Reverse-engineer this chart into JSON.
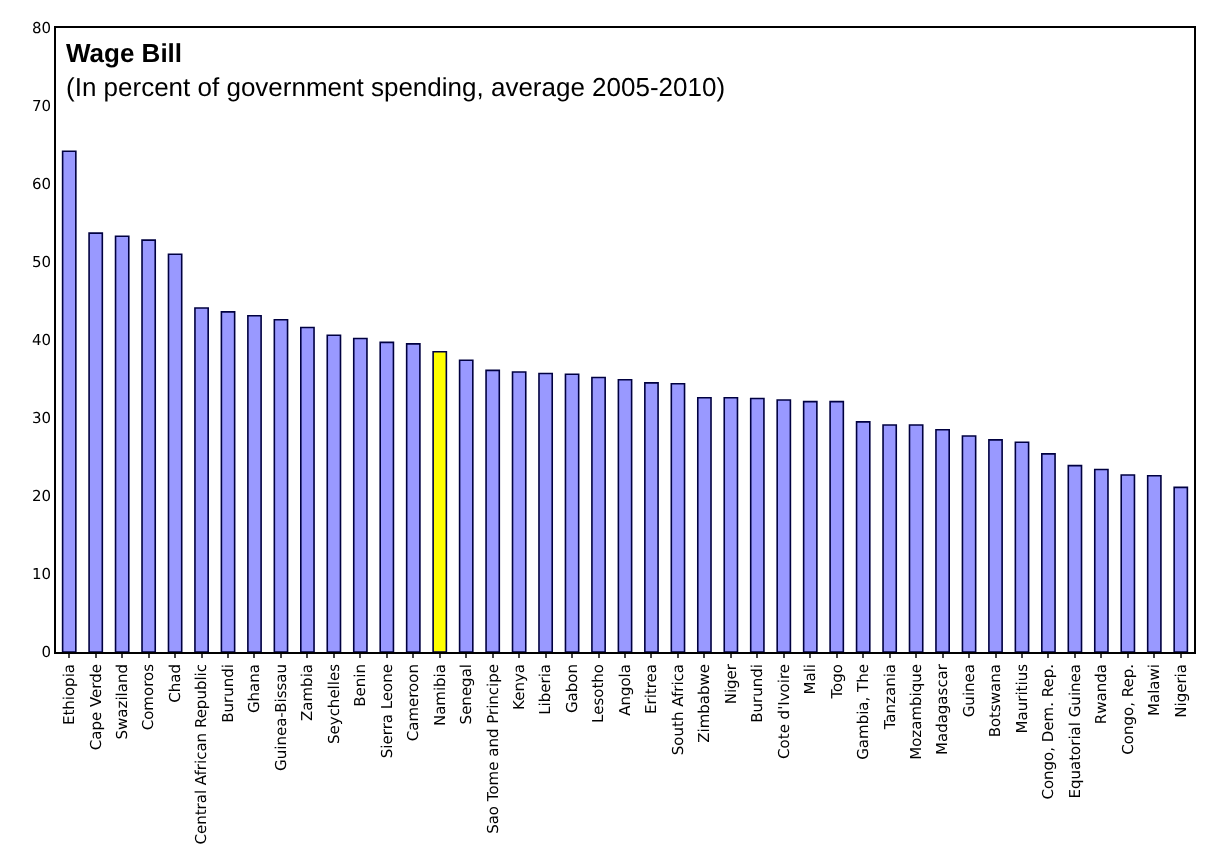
{
  "chart_data": {
    "type": "bar",
    "title": "Wage Bill",
    "subtitle": "(In percent of government spending, average 2005-2010)",
    "categories": [
      "Ethiopia",
      "Cape Verde",
      "Swaziland",
      "Comoros",
      "Chad",
      "Central African Republic",
      "Burundi",
      "Ghana",
      "Guinea-Bissau",
      "Zambia",
      "Seychelles",
      "Benin",
      "Sierra Leone",
      "Cameroon",
      "Namibia",
      "Senegal",
      "Sao Tome and Principe",
      "Kenya",
      "Liberia",
      "Gabon",
      "Lesotho",
      "Angola",
      "Eritrea",
      "South Africa",
      "Zimbabwe",
      "Niger",
      "Burundi",
      "Cote d'Ivoire",
      "Mali",
      "Togo",
      "Gambia, The",
      "Tanzania",
      "Mozambique",
      "Madagascar",
      "Guinea",
      "Botswana",
      "Mauritius",
      "Congo, Dem. Rep.",
      "Equatorial Guinea",
      "Rwanda",
      "Congo, Rep.",
      "Malawi",
      "Nigeria"
    ],
    "values": [
      64.2,
      53.7,
      53.3,
      52.8,
      51.0,
      44.1,
      43.6,
      43.1,
      42.6,
      41.6,
      40.6,
      40.2,
      39.7,
      39.5,
      38.5,
      37.4,
      36.1,
      35.9,
      35.7,
      35.6,
      35.2,
      34.9,
      34.5,
      34.4,
      32.6,
      32.6,
      32.5,
      32.3,
      32.1,
      32.1,
      29.5,
      29.1,
      29.1,
      28.5,
      27.7,
      27.2,
      26.9,
      25.4,
      23.9,
      23.4,
      22.7,
      22.6,
      21.1
    ],
    "colors": [
      "#9999ff",
      "#9999ff",
      "#9999ff",
      "#9999ff",
      "#9999ff",
      "#9999ff",
      "#9999ff",
      "#9999ff",
      "#9999ff",
      "#9999ff",
      "#9999ff",
      "#9999ff",
      "#9999ff",
      "#9999ff",
      "#ffff00",
      "#9999ff",
      "#9999ff",
      "#9999ff",
      "#9999ff",
      "#9999ff",
      "#9999ff",
      "#9999ff",
      "#9999ff",
      "#9999ff",
      "#9999ff",
      "#9999ff",
      "#9999ff",
      "#9999ff",
      "#9999ff",
      "#9999ff",
      "#9999ff",
      "#9999ff",
      "#9999ff",
      "#9999ff",
      "#9999ff",
      "#9999ff",
      "#9999ff",
      "#9999ff",
      "#9999ff",
      "#9999ff",
      "#9999ff",
      "#9999ff",
      "#9999ff"
    ],
    "ylim": [
      0,
      80
    ],
    "yticks": [
      0,
      10,
      20,
      30,
      40,
      50,
      60,
      70,
      80
    ],
    "grid": false
  }
}
